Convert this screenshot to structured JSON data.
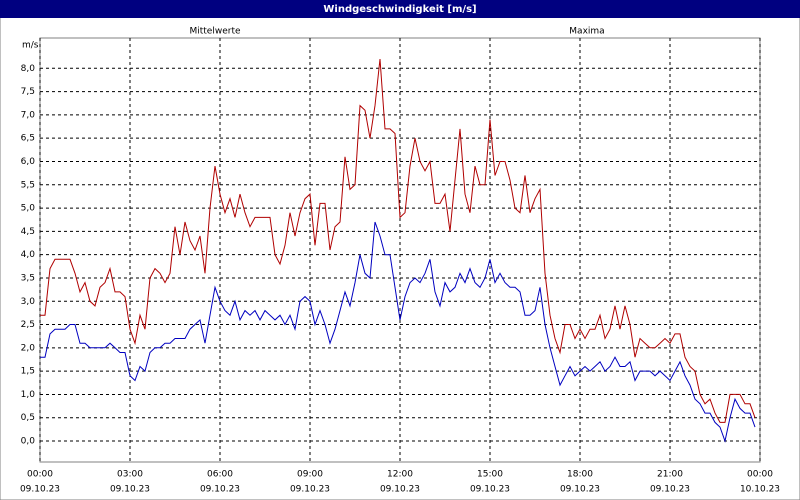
{
  "chart_data": {
    "type": "line",
    "title": "Windgeschwindigkeit [m/s]",
    "y_label": "m/s",
    "x": [
      0,
      10,
      20,
      30,
      40,
      50,
      60,
      70,
      80,
      90,
      100,
      110,
      120,
      130,
      140,
      150,
      160,
      170,
      180,
      190,
      200,
      210,
      220,
      230,
      240,
      250,
      260,
      270,
      280,
      290,
      300,
      310,
      320,
      330,
      340,
      350,
      360,
      370,
      380,
      390,
      400,
      410,
      420,
      430,
      440,
      450,
      460,
      470,
      480,
      490,
      500,
      510,
      520,
      530,
      540,
      550,
      560,
      570,
      580,
      590,
      600,
      610,
      620,
      630,
      640,
      650,
      660,
      670,
      680,
      690,
      700,
      710,
      720,
      730,
      740,
      750,
      760,
      770,
      780,
      790,
      800,
      810,
      820,
      830,
      840,
      850,
      860,
      870,
      880,
      890,
      900,
      910,
      920,
      930,
      940,
      950,
      960,
      970,
      980,
      990,
      1000,
      1010,
      1020,
      1030,
      1040,
      1050,
      1060,
      1070,
      1080,
      1090,
      1100,
      1110,
      1120,
      1130,
      1140,
      1150,
      1160,
      1170,
      1180,
      1190,
      1200,
      1210,
      1220,
      1230,
      1240,
      1250,
      1260,
      1270,
      1280,
      1290,
      1300,
      1310,
      1320,
      1330,
      1340,
      1350,
      1360,
      1370,
      1380,
      1390,
      1400,
      1410,
      1420,
      1430
    ],
    "series": [
      {
        "name": "Mittelwerte",
        "color": "#0000c0",
        "values": [
          1.8,
          1.8,
          2.3,
          2.4,
          2.4,
          2.4,
          2.5,
          2.5,
          2.1,
          2.1,
          2.0,
          2.0,
          2.0,
          2.0,
          2.1,
          2.0,
          1.9,
          1.9,
          1.4,
          1.3,
          1.6,
          1.5,
          1.9,
          2.0,
          2.0,
          2.1,
          2.1,
          2.2,
          2.2,
          2.2,
          2.4,
          2.5,
          2.6,
          2.1,
          2.7,
          3.3,
          3.0,
          2.8,
          2.7,
          3.0,
          2.6,
          2.8,
          2.7,
          2.8,
          2.6,
          2.8,
          2.7,
          2.6,
          2.7,
          2.5,
          2.7,
          2.4,
          3.0,
          3.1,
          3.0,
          2.5,
          2.8,
          2.5,
          2.1,
          2.4,
          2.8,
          3.2,
          2.9,
          3.4,
          4.0,
          3.6,
          3.5,
          4.7,
          4.4,
          4.0,
          4.0,
          3.3,
          2.6,
          3.1,
          3.4,
          3.5,
          3.4,
          3.6,
          3.9,
          3.2,
          2.9,
          3.4,
          3.2,
          3.3,
          3.6,
          3.4,
          3.7,
          3.4,
          3.3,
          3.5,
          3.9,
          3.4,
          3.6,
          3.4,
          3.3,
          3.3,
          3.2,
          2.7,
          2.7,
          2.8,
          3.3,
          2.5,
          2.0,
          1.6,
          1.2,
          1.4,
          1.6,
          1.4,
          1.5,
          1.6,
          1.5,
          1.6,
          1.7,
          1.5,
          1.6,
          1.8,
          1.6,
          1.6,
          1.7,
          1.3,
          1.5,
          1.5,
          1.5,
          1.4,
          1.5,
          1.4,
          1.3,
          1.5,
          1.7,
          1.4,
          1.2,
          0.9,
          0.8,
          0.6,
          0.6,
          0.4,
          0.3,
          0.0,
          0.5,
          0.9,
          0.7,
          0.6,
          0.6,
          0.3
        ]
      },
      {
        "name": "Maxima",
        "color": "#b00000",
        "values": [
          2.7,
          2.7,
          3.7,
          3.9,
          3.9,
          3.9,
          3.9,
          3.6,
          3.2,
          3.4,
          3.0,
          2.9,
          3.3,
          3.4,
          3.7,
          3.2,
          3.2,
          3.1,
          2.4,
          2.1,
          2.7,
          2.4,
          3.5,
          3.7,
          3.6,
          3.4,
          3.6,
          4.6,
          4.0,
          4.7,
          4.3,
          4.1,
          4.4,
          3.6,
          5.0,
          5.9,
          5.3,
          4.9,
          5.2,
          4.8,
          5.3,
          4.9,
          4.6,
          4.8,
          4.8,
          4.8,
          4.8,
          4.0,
          3.8,
          4.2,
          4.9,
          4.4,
          4.9,
          5.2,
          5.3,
          4.2,
          5.1,
          5.1,
          4.1,
          4.6,
          4.7,
          6.1,
          5.4,
          5.5,
          7.2,
          7.1,
          6.5,
          7.2,
          8.2,
          6.7,
          6.7,
          6.6,
          4.8,
          4.9,
          5.9,
          6.5,
          6.0,
          5.8,
          6.0,
          5.1,
          5.1,
          5.3,
          4.5,
          5.6,
          6.7,
          5.3,
          4.9,
          5.9,
          5.5,
          5.5,
          6.9,
          5.7,
          6.0,
          6.0,
          5.6,
          5.0,
          4.9,
          5.7,
          4.9,
          5.2,
          5.4,
          3.6,
          2.7,
          2.2,
          1.9,
          2.5,
          2.5,
          2.2,
          2.4,
          2.2,
          2.4,
          2.4,
          2.7,
          2.2,
          2.4,
          2.9,
          2.4,
          2.9,
          2.5,
          1.8,
          2.2,
          2.1,
          2.0,
          2.0,
          2.1,
          2.2,
          2.1,
          2.3,
          2.3,
          1.8,
          1.6,
          1.5,
          1.0,
          0.8,
          0.9,
          0.6,
          0.4,
          0.4,
          1.0,
          1.0,
          1.0,
          0.8,
          0.8,
          0.5
        ]
      }
    ],
    "xlim": [
      0,
      1440
    ],
    "xticks": [
      {
        "value": 0,
        "label": "00:00"
      },
      {
        "value": 180,
        "label": "03:00"
      },
      {
        "value": 360,
        "label": "06:00"
      },
      {
        "value": 540,
        "label": "09:00"
      },
      {
        "value": 720,
        "label": "12:00"
      },
      {
        "value": 900,
        "label": "15:00"
      },
      {
        "value": 1080,
        "label": "18:00"
      },
      {
        "value": 1260,
        "label": "21:00"
      },
      {
        "value": 1440,
        "label": "00:00"
      }
    ],
    "xtick_dates": [
      "09.10.23",
      "09.10.23",
      "09.10.23",
      "09.10.23",
      "09.10.23",
      "09.10.23",
      "09.10.23",
      "09.10.23",
      "10.10.23"
    ],
    "ylim": [
      -0.45,
      8.65
    ],
    "yticks": [
      {
        "value": 0,
        "label": "0,0"
      },
      {
        "value": 0.5,
        "label": "0,5"
      },
      {
        "value": 1,
        "label": "1,0"
      },
      {
        "value": 1.5,
        "label": "1,5"
      },
      {
        "value": 2,
        "label": "2,0"
      },
      {
        "value": 2.5,
        "label": "2,5"
      },
      {
        "value": 3,
        "label": "3,0"
      },
      {
        "value": 3.5,
        "label": "3,5"
      },
      {
        "value": 4,
        "label": "4,0"
      },
      {
        "value": 4.5,
        "label": "4,5"
      },
      {
        "value": 5,
        "label": "5,0"
      },
      {
        "value": 5.5,
        "label": "5,5"
      },
      {
        "value": 6,
        "label": "6,0"
      },
      {
        "value": 6.5,
        "label": "6,5"
      },
      {
        "value": 7,
        "label": "7,0"
      },
      {
        "value": 7.5,
        "label": "7,5"
      },
      {
        "value": 8,
        "label": "8,0"
      }
    ],
    "grid": true
  }
}
